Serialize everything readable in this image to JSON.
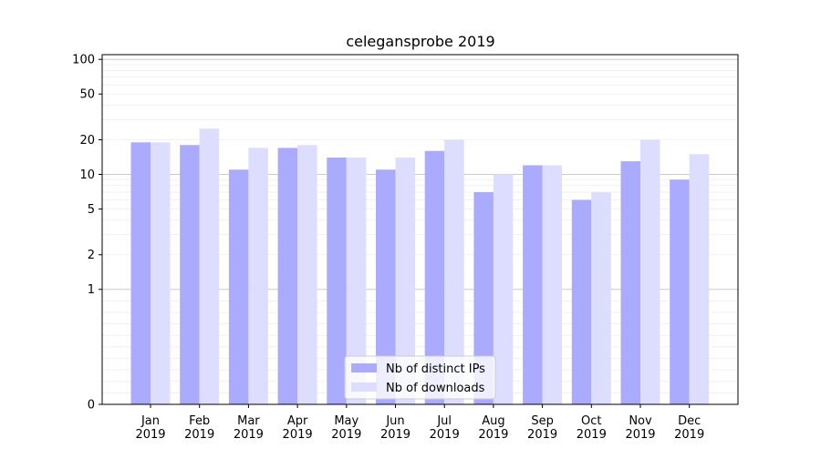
{
  "chart_data": {
    "type": "bar",
    "title": "celegansprobe 2019",
    "xlabel": "",
    "ylabel": "",
    "yscale": "symlog",
    "ylim": [
      0,
      110
    ],
    "yticks": [
      0,
      1,
      2,
      5,
      10,
      20,
      50,
      100
    ],
    "ytick_labels": [
      "0",
      "1",
      "2",
      "5",
      "10",
      "20",
      "50",
      "100"
    ],
    "categories": [
      [
        "Jan",
        "2019"
      ],
      [
        "Feb",
        "2019"
      ],
      [
        "Mar",
        "2019"
      ],
      [
        "Apr",
        "2019"
      ],
      [
        "May",
        "2019"
      ],
      [
        "Jun",
        "2019"
      ],
      [
        "Jul",
        "2019"
      ],
      [
        "Aug",
        "2019"
      ],
      [
        "Sep",
        "2019"
      ],
      [
        "Oct",
        "2019"
      ],
      [
        "Nov",
        "2019"
      ],
      [
        "Dec",
        "2019"
      ]
    ],
    "series": [
      {
        "name": "Nb of distinct IPs",
        "color": "#aaaaff",
        "values": [
          19,
          18,
          11,
          17,
          14,
          11,
          16,
          7,
          12,
          6,
          13,
          9
        ]
      },
      {
        "name": "Nb of downloads",
        "color": "#ddddff",
        "values": [
          19,
          25,
          17,
          18,
          14,
          14,
          20,
          10,
          12,
          7,
          20,
          15
        ]
      }
    ],
    "grid": true,
    "legend_position": "bottom-center"
  }
}
